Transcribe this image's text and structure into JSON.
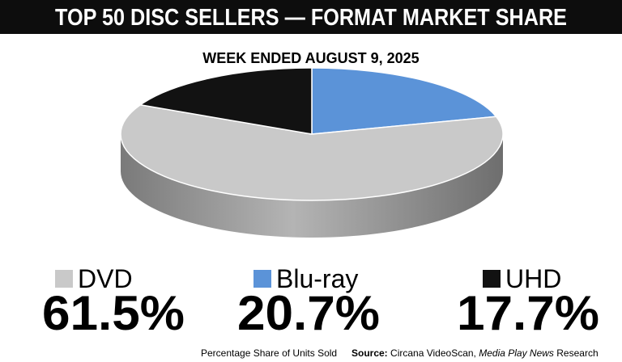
{
  "chart_data": {
    "type": "pie3d",
    "title": "TOP 50 DISC SELLERS — FORMAT MARKET SHARE",
    "subtitle": "WEEK ENDED AUGUST 9, 2025",
    "categories": [
      "DVD",
      "Blu-ray",
      "UHD"
    ],
    "values": [
      61.5,
      20.7,
      17.7
    ],
    "value_labels": [
      "61.5%",
      "20.7%",
      "17.7%"
    ],
    "colors": [
      "#c9c9c9",
      "#5b93d8",
      "#121212"
    ],
    "note": "Percentage Share of Units Sold",
    "source_label": "Source:",
    "source": [
      "Circana VideoScan, ",
      "Media Play News",
      " Research"
    ]
  }
}
